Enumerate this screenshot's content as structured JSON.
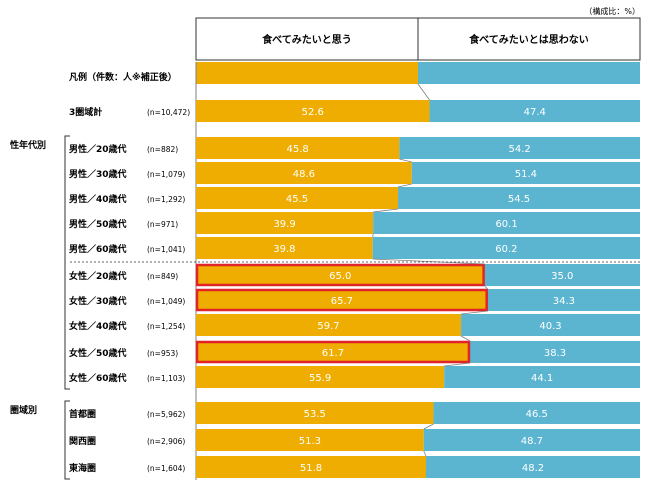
{
  "chart_data": {
    "type": "bar",
    "stacked": true,
    "horizontal": true,
    "unit_note": "（構成比：%）",
    "header_labels": [
      "食べてみたいと思う",
      "食べてみたいとは思わない"
    ],
    "legend_row_label": "凡例（件数：人※補正後）",
    "colors": {
      "yes": "#EEAD00",
      "no": "#5BB5D0",
      "highlight": "#E1232A",
      "grid": "#7F7F7F"
    },
    "rows": [
      {
        "label": "3圏域計",
        "n": "(n=10,472)",
        "values": [
          52.6,
          47.4
        ],
        "yes_text": "52.6",
        "no_text": "47.4"
      },
      {
        "label": "男性／20歳代",
        "n": "(n=882)",
        "values": [
          45.8,
          54.2
        ],
        "yes_text": "45.8",
        "no_text": "54.2"
      },
      {
        "label": "男性／30歳代",
        "n": "(n=1,079)",
        "values": [
          48.6,
          51.4
        ],
        "yes_text": "48.6",
        "no_text": "51.4"
      },
      {
        "label": "男性／40歳代",
        "n": "(n=1,292)",
        "values": [
          45.5,
          54.5
        ],
        "yes_text": "45.5",
        "no_text": "54.5"
      },
      {
        "label": "男性／50歳代",
        "n": "(n=971)",
        "values": [
          39.9,
          60.1
        ],
        "yes_text": "39.9",
        "no_text": "60.1"
      },
      {
        "label": "男性／60歳代",
        "n": "(n=1,041)",
        "values": [
          39.8,
          60.2
        ],
        "yes_text": "39.8",
        "no_text": "60.2"
      },
      {
        "label": "女性／20歳代",
        "n": "(n=849)",
        "values": [
          65.0,
          35.0
        ],
        "yes_text": "65.0",
        "no_text": "35.0",
        "highlight": true
      },
      {
        "label": "女性／30歳代",
        "n": "(n=1,049)",
        "values": [
          65.7,
          34.3
        ],
        "yes_text": "65.7",
        "no_text": "34.3",
        "highlight": true
      },
      {
        "label": "女性／40歳代",
        "n": "(n=1,254)",
        "values": [
          59.7,
          40.3
        ],
        "yes_text": "59.7",
        "no_text": "40.3"
      },
      {
        "label": "女性／50歳代",
        "n": "(n=953)",
        "values": [
          61.7,
          38.3
        ],
        "yes_text": "61.7",
        "no_text": "38.3",
        "highlight": true
      },
      {
        "label": "女性／60歳代",
        "n": "(n=1,103)",
        "values": [
          55.9,
          44.1
        ],
        "yes_text": "55.9",
        "no_text": "44.1"
      },
      {
        "label": "首都圏",
        "n": "(n=5,962)",
        "values": [
          53.5,
          46.5
        ],
        "yes_text": "53.5",
        "no_text": "46.5"
      },
      {
        "label": "関西圏",
        "n": "(n=2,906)",
        "values": [
          51.3,
          48.7
        ],
        "yes_text": "51.3",
        "no_text": "48.7"
      },
      {
        "label": "東海圏",
        "n": "(n=1,604)",
        "values": [
          51.8,
          48.2
        ],
        "yes_text": "51.8",
        "no_text": "48.2"
      }
    ],
    "groups": [
      {
        "label": "性年代別",
        "first_row": 1,
        "last_row": 10
      },
      {
        "label": "圏域別",
        "first_row": 11,
        "last_row": 13
      }
    ],
    "xlim": [
      0,
      100
    ]
  }
}
